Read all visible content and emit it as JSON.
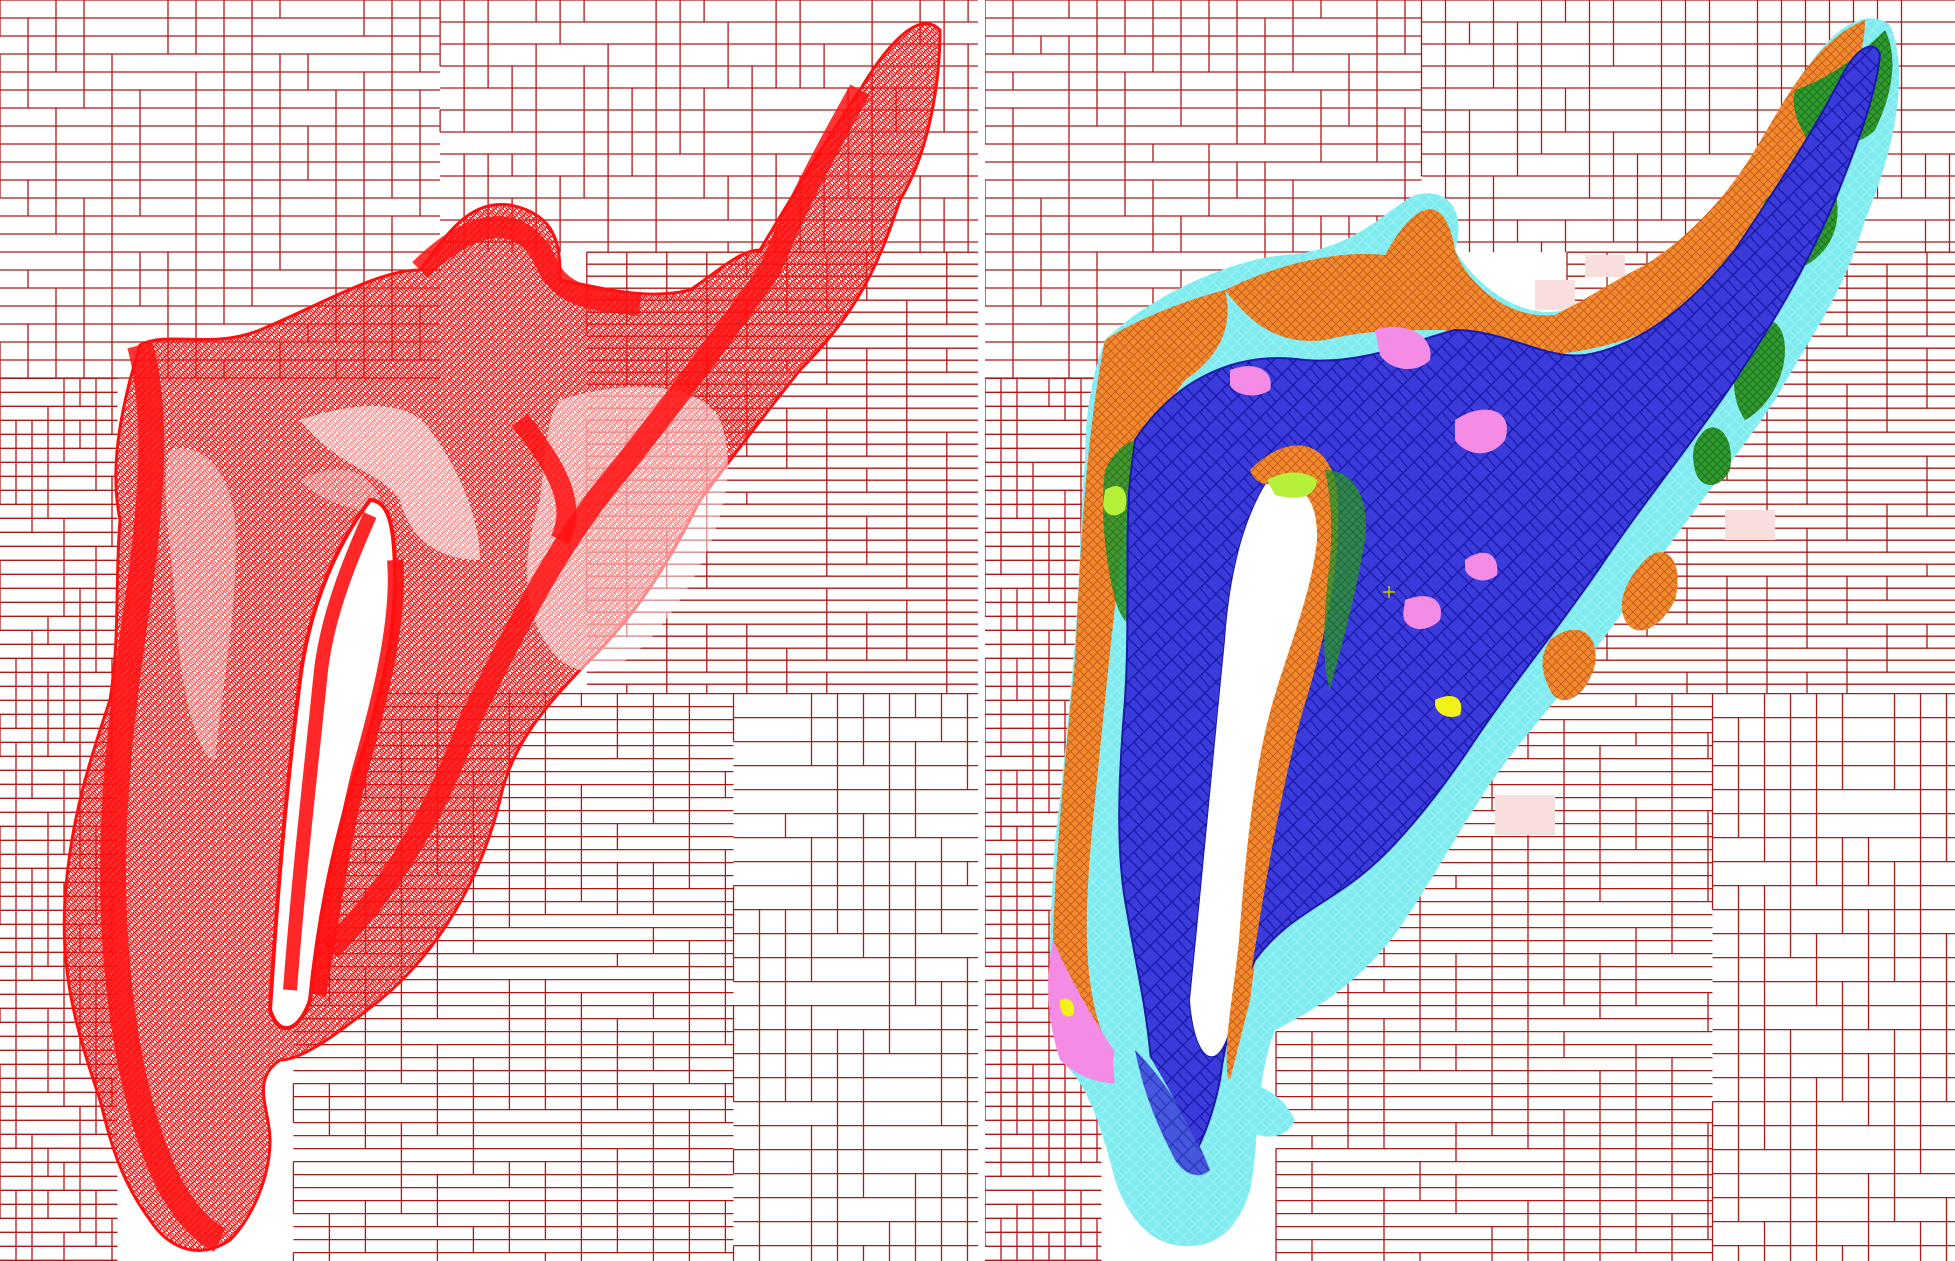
{
  "panels": [
    {
      "id": "left",
      "description_type": "mesh-only",
      "colors": {
        "grid_line": "#b01818",
        "mesh_line": "#ff1010",
        "background": "#ffffff"
      }
    },
    {
      "id": "right",
      "description_type": "classified-mesh",
      "colors": {
        "grid_line": "#b01818",
        "background": "#ffffff",
        "deep_water": "#3b3bdc",
        "deep_water_line": "#1a1aa8",
        "shallow_water": "#80ecf0",
        "orange_class": "#f08a2c",
        "green_class": "#2e9a2e",
        "pink_class": "#f48ce6",
        "lime_class": "#b6f03a",
        "yellow_class": "#f2f21a",
        "pale_pink_patch": "#f9dede"
      }
    }
  ]
}
